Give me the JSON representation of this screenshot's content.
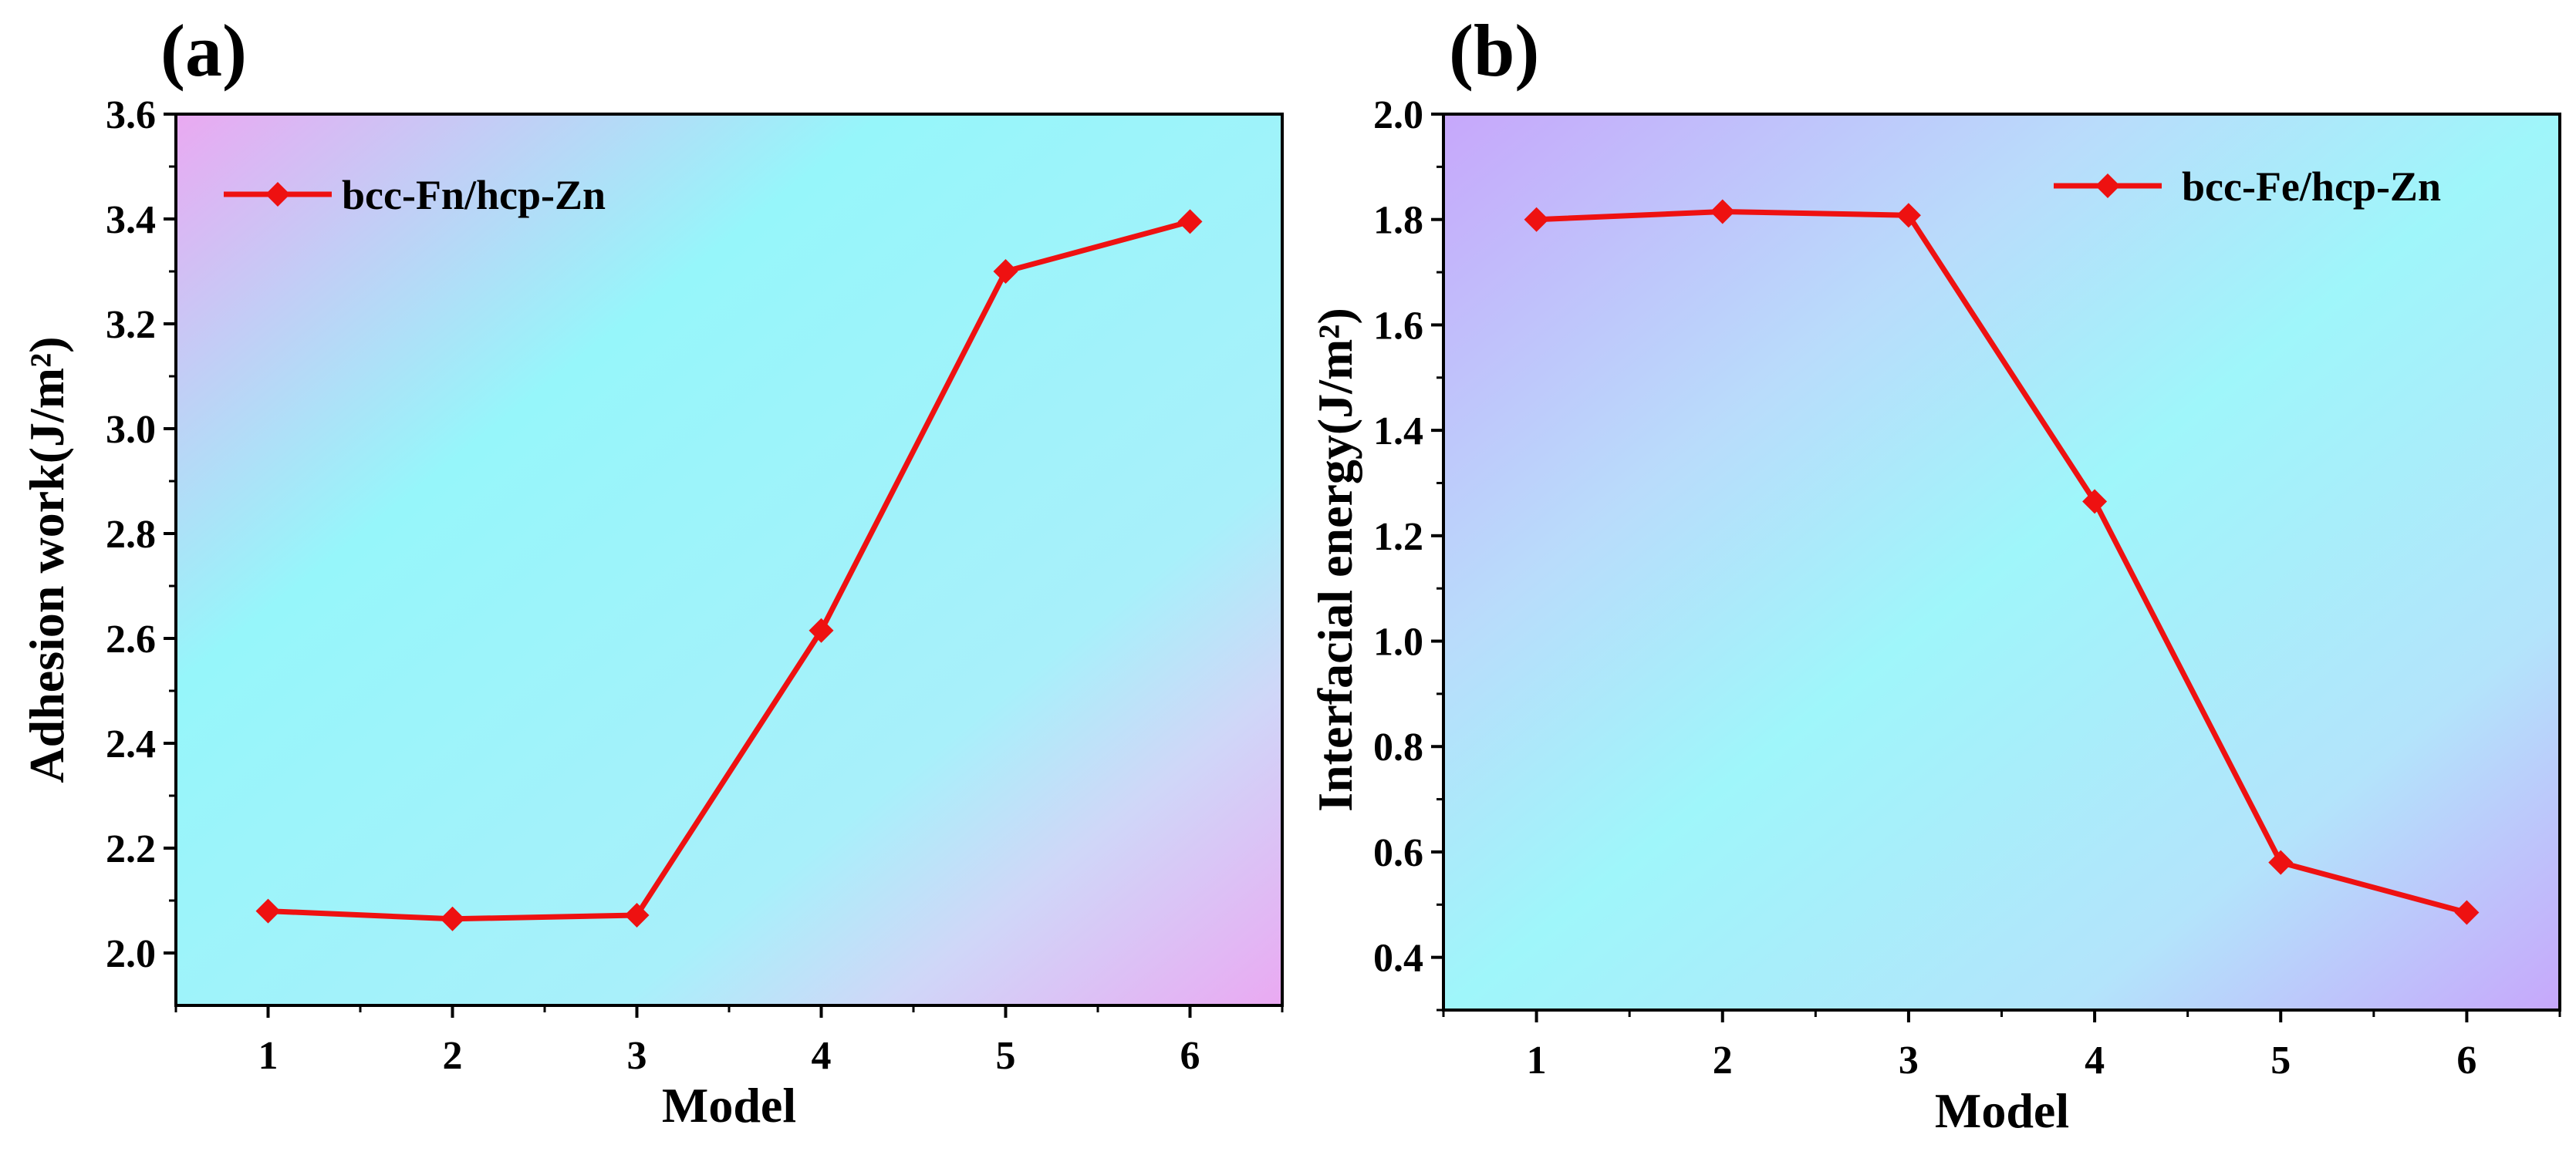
{
  "colors": {
    "line": "#ee1111",
    "bg_cyan": "#96f6fa",
    "bg_pink": "#eaa9f2",
    "bg_violet": "#c7a7fb",
    "axis": "#000000"
  },
  "chart_data": [
    {
      "type": "line",
      "panel_label": "(a)",
      "title": "",
      "xlabel": "Model",
      "ylabel": "Adhesion work(J/m²)",
      "x": [
        1,
        2,
        3,
        4,
        5,
        6
      ],
      "xticks": [
        "1",
        "2",
        "3",
        "4",
        "5",
        "6"
      ],
      "xlim": [
        0.5,
        6.5
      ],
      "ylim": [
        1.9,
        3.6
      ],
      "yticks": [
        "2.0",
        "2.2",
        "2.4",
        "2.6",
        "2.8",
        "3.0",
        "3.2",
        "3.4",
        "3.6"
      ],
      "series": [
        {
          "name": "bcc-Fn/hcp-Zn",
          "values": [
            2.08,
            2.065,
            2.072,
            2.615,
            3.3,
            3.395
          ],
          "marker": "diamond"
        }
      ],
      "legend": "top-left",
      "grid": false
    },
    {
      "type": "line",
      "panel_label": "(b)",
      "title": "",
      "xlabel": "Model",
      "ylabel": "Interfacial energy(J/m²)",
      "x": [
        1,
        2,
        3,
        4,
        5,
        6
      ],
      "xticks": [
        "1",
        "2",
        "3",
        "4",
        "5",
        "6"
      ],
      "xlim": [
        0.5,
        6.5
      ],
      "ylim": [
        0.3,
        2.0
      ],
      "yticks": [
        "0.4",
        "0.6",
        "0.8",
        "1.0",
        "1.2",
        "1.4",
        "1.6",
        "1.8",
        "2.0"
      ],
      "series": [
        {
          "name": "bcc-Fe/hcp-Zn",
          "values": [
            1.8,
            1.815,
            1.808,
            1.265,
            0.58,
            0.485
          ],
          "marker": "diamond"
        }
      ],
      "legend": "top-right",
      "grid": false
    }
  ]
}
